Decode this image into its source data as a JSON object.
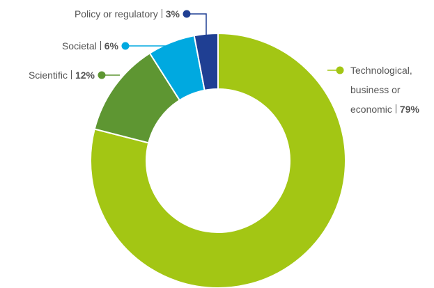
{
  "chart_data": {
    "type": "donut",
    "categories": [
      "Technological, business or economic",
      "Scientific",
      "Societal",
      "Policy or regulatory"
    ],
    "values": [
      79,
      12,
      6,
      3
    ],
    "value_labels": [
      "79%",
      "12%",
      "6%",
      "3%"
    ],
    "colors": [
      "#a3c614",
      "#5e9632",
      "#00a9e0",
      "#1f3f93"
    ]
  }
}
